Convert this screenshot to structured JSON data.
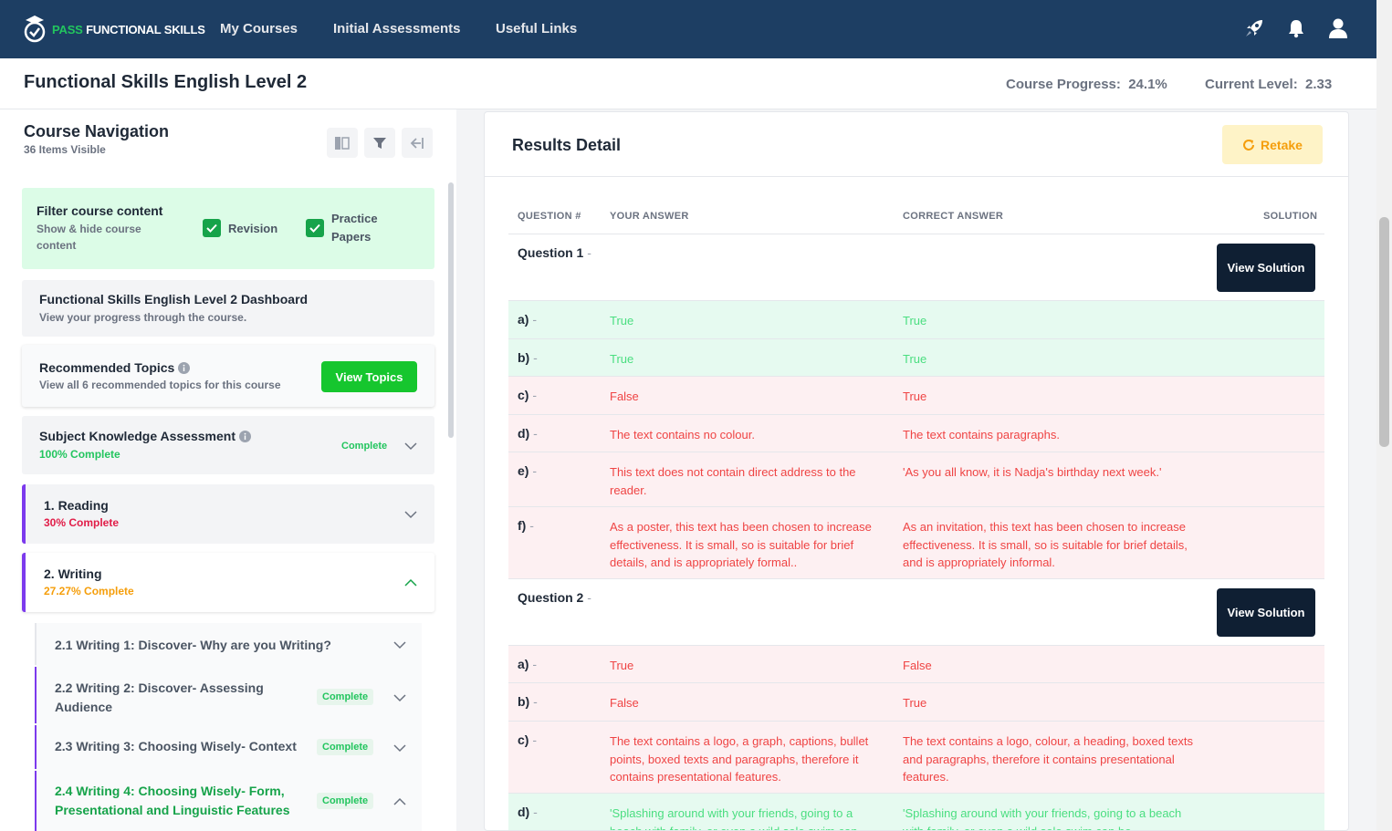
{
  "topnav": {
    "logo_prefix": "PASS",
    "logo_suffix": "FUNCTIONAL SKILLS",
    "links": [
      "My Courses",
      "Initial Assessments",
      "Useful Links"
    ]
  },
  "header": {
    "course_title": "Functional Skills English Level 2",
    "progress_label": "Course Progress:",
    "progress_value": "24.1%",
    "level_label": "Current Level:",
    "level_value": "2.33"
  },
  "sidebar": {
    "title": "Course Navigation",
    "subtitle": "36 Items Visible",
    "filter": {
      "title": "Filter course content",
      "subtitle": "Show & hide course content",
      "opt1": "Revision",
      "opt2": "Practice Papers"
    },
    "dashboard": {
      "title": "Functional Skills English Level 2 Dashboard",
      "subtitle": "View your progress through the course."
    },
    "recommended": {
      "title": "Recommended Topics",
      "subtitle": "View all 6 recommended topics for this course",
      "button": "View Topics"
    },
    "ska": {
      "title": "Subject Knowledge Assessment",
      "subtitle": "100% Complete",
      "badge": "Complete"
    },
    "reading": {
      "title": "1. Reading",
      "subtitle": "30% Complete"
    },
    "writing": {
      "title": "2. Writing",
      "subtitle": "27.27% Complete"
    },
    "subitems": [
      {
        "title": "2.1 Writing 1: Discover- Why are you Writing?",
        "badge": ""
      },
      {
        "title": "2.2 Writing 2: Discover- Assessing Audience",
        "badge": "Complete"
      },
      {
        "title": "2.3 Writing 3: Choosing Wisely- Context",
        "badge": "Complete"
      },
      {
        "title": "2.4 Writing 4: Choosing Wisely- Form, Presentational and Linguistic Features",
        "badge": "Complete"
      }
    ]
  },
  "results": {
    "title": "Results Detail",
    "retake": "Retake",
    "headers": {
      "question": "QUESTION #",
      "your": "YOUR ANSWER",
      "correct": "CORRECT ANSWER",
      "solution": "SOLUTION"
    },
    "view_solution": "View Solution",
    "q1": "Question 1",
    "q2": "Question 2",
    "dash": "-",
    "q1_rows": [
      {
        "label": "a)",
        "your": "True",
        "correct": "True"
      },
      {
        "label": "b)",
        "your": "True",
        "correct": "True"
      },
      {
        "label": "c)",
        "your": "False",
        "correct": "True"
      },
      {
        "label": "d)",
        "your": "The text contains no colour.",
        "correct": "The text contains paragraphs."
      },
      {
        "label": "e)",
        "your": "This text does not contain direct address to the reader.",
        "correct": "'As you all know, it is Nadja's birthday next week.'"
      },
      {
        "label": "f)",
        "your": "As a poster, this text has been chosen to increase effectiveness. It is small, so is suitable for brief details, and is appropriately formal..",
        "correct": "As an invitation, this text has been chosen to increase effectiveness. It is small, so is suitable for brief details, and is appropriately informal."
      }
    ],
    "q2_rows": [
      {
        "label": "a)",
        "your": "True",
        "correct": "False"
      },
      {
        "label": "b)",
        "your": "False",
        "correct": "True"
      },
      {
        "label": "c)",
        "your": "The text contains a logo, a graph, captions, bullet points, boxed texts and paragraphs, therefore it contains presentational features.",
        "correct": "The text contains a logo, colour, a heading, boxed texts and paragraphs, therefore it contains presentational features."
      },
      {
        "label": "d)",
        "your": "'Splashing around with your friends, going to a beach with family, or even a wild solo swim can",
        "correct": "'Splashing around with your friends, going to a beach with family, or even a wild solo swim can be"
      }
    ]
  }
}
